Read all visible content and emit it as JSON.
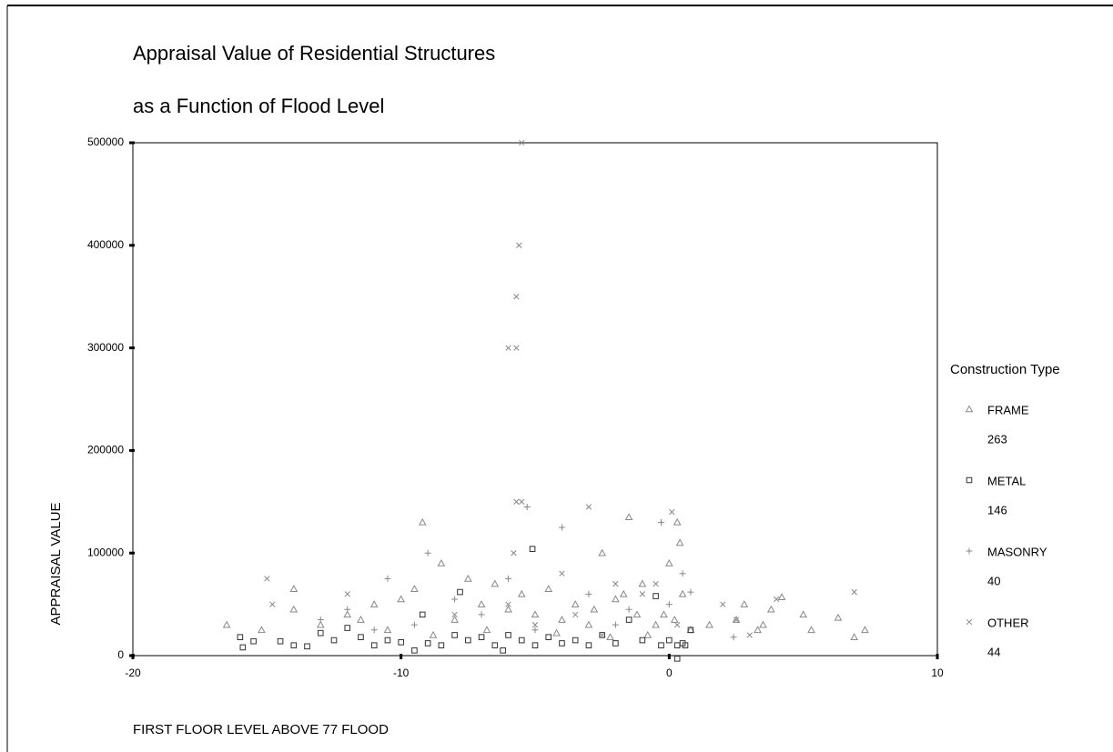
{
  "chart_data": {
    "type": "scatter",
    "title": "Appraisal Value of Residential Structures",
    "subtitle": "as a Function of Flood Level",
    "x_label": "FIRST FLOOR LEVEL ABOVE 77 FLOOD",
    "y_label": "APPRAISAL VALUE",
    "legend_title": "Construction Type",
    "xlim": [
      -20,
      10
    ],
    "xticks": [
      -20,
      -10,
      0,
      10
    ],
    "ylim": [
      0,
      500000
    ],
    "yticks": [
      0,
      100000,
      200000,
      300000,
      400000,
      500000
    ],
    "series": [
      {
        "name": "FRAME",
        "n": 263,
        "marker": "triangle",
        "color": "#888888",
        "x": [
          -16.5,
          -15.2,
          -14,
          -14,
          -13,
          -12,
          -11,
          -10,
          -9.5,
          -9.2,
          -8.5,
          -8,
          -7.5,
          -7,
          -6.5,
          -6,
          -5.5,
          -5,
          -4.5,
          -4,
          -3.5,
          -3,
          -2.8,
          -2.5,
          -2,
          -1.7,
          -1.5,
          -1.2,
          -1,
          -0.5,
          -0.2,
          0,
          0.3,
          0.4,
          0.5,
          0.8,
          1.5,
          2.5,
          2.8,
          3.5,
          3.8,
          4.2,
          5,
          5.3,
          6.3,
          6.9,
          7.3,
          -11.5,
          -10.5,
          -8.8,
          -6.8,
          -4.2,
          -2.2,
          -0.8,
          0.2,
          3.3
        ],
        "values": [
          30000,
          25000,
          65000,
          45000,
          30000,
          40000,
          50000,
          55000,
          65000,
          130000,
          90000,
          35000,
          75000,
          50000,
          70000,
          45000,
          60000,
          40000,
          65000,
          35000,
          50000,
          30000,
          45000,
          100000,
          55000,
          60000,
          135000,
          40000,
          70000,
          30000,
          40000,
          90000,
          130000,
          110000,
          60000,
          25000,
          30000,
          35000,
          50000,
          30000,
          45000,
          57000,
          40000,
          25000,
          37000,
          18000,
          25000,
          35000,
          25000,
          20000,
          25000,
          22000,
          18000,
          20000,
          35000,
          25000
        ]
      },
      {
        "name": "METAL",
        "n": 146,
        "marker": "square",
        "color": "#333333",
        "x": [
          -16,
          -15.9,
          -15.5,
          -14.5,
          -14,
          -13.5,
          -13,
          -12.5,
          -12,
          -11.5,
          -11,
          -10.5,
          -10,
          -9.5,
          -9.2,
          -9,
          -8.5,
          -8,
          -7.8,
          -7.5,
          -7,
          -6.5,
          -6.2,
          -6,
          -5.5,
          -5.1,
          -5,
          -4.5,
          -4,
          -3.5,
          -3,
          -2.5,
          -2,
          -1.5,
          -1,
          -0.5,
          -0.3,
          0,
          0.3,
          0.5,
          0.6,
          0.8,
          0.3
        ],
        "values": [
          18000,
          8000,
          14000,
          14000,
          10000,
          9000,
          22000,
          15000,
          27000,
          18000,
          10000,
          15000,
          13000,
          5000,
          40000,
          12000,
          10000,
          20000,
          62000,
          15000,
          18000,
          10000,
          5000,
          20000,
          15000,
          104000,
          10000,
          18000,
          12000,
          15000,
          10000,
          20000,
          12000,
          35000,
          15000,
          58000,
          10000,
          15000,
          10000,
          12000,
          10000,
          25000,
          -3000
        ]
      },
      {
        "name": "MASONRY",
        "n": 40,
        "marker": "plus",
        "color": "#888888",
        "x": [
          -5.3,
          -4,
          -9,
          -10.5,
          -6,
          0.5,
          0.8,
          -0.3,
          2.4,
          -12,
          -13,
          -8,
          -7,
          -3,
          -1.5,
          -5,
          -2,
          0,
          -9.5,
          -11
        ],
        "values": [
          145000,
          125000,
          100000,
          75000,
          75000,
          80000,
          62000,
          130000,
          18000,
          45000,
          35000,
          55000,
          40000,
          60000,
          45000,
          25000,
          30000,
          50000,
          30000,
          25000
        ]
      },
      {
        "name": "OTHER",
        "n": 44,
        "marker": "x",
        "color": "#888888",
        "x": [
          -5.5,
          -5.6,
          -5.7,
          -6,
          -5.7,
          -5.7,
          -5.5,
          -5.8,
          0.1,
          -3,
          -15,
          -14.8,
          -3.5,
          -2,
          -1,
          2,
          4,
          6.9,
          -0.5,
          -4,
          -8,
          -12,
          -6,
          -5,
          -2.5,
          0.3,
          2.5,
          3
        ],
        "values": [
          500000,
          400000,
          350000,
          300000,
          300000,
          150000,
          150000,
          100000,
          140000,
          145000,
          75000,
          50000,
          40000,
          70000,
          60000,
          50000,
          55000,
          62000,
          70000,
          80000,
          40000,
          60000,
          50000,
          30000,
          20000,
          30000,
          35000,
          20000
        ]
      }
    ]
  }
}
